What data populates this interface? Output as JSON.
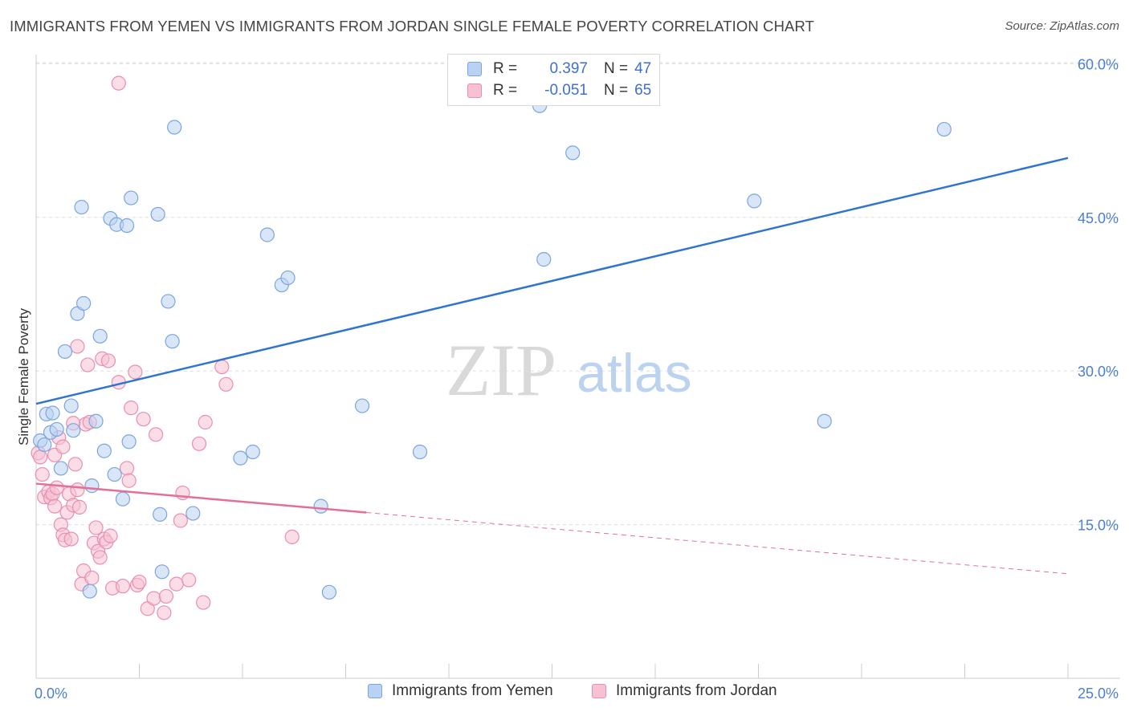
{
  "header": {
    "title": "IMMIGRANTS FROM YEMEN VS IMMIGRANTS FROM JORDAN SINGLE FEMALE POVERTY CORRELATION CHART",
    "source": "Source: ZipAtlas.com"
  },
  "legend": {
    "series1": {
      "r_label": "R =",
      "r_value": "0.397",
      "n_label": "N =",
      "n_value": "47"
    },
    "series2": {
      "r_label": "R =",
      "r_value": "-0.051",
      "n_label": "N =",
      "n_value": "65"
    }
  },
  "watermark": {
    "zip": "ZIP",
    "atlas": "atlas"
  },
  "colors": {
    "blue_fill": "#b9d1f3",
    "blue_stroke": "#7aa5e0",
    "blue_line": "#2f74cf",
    "pink_fill": "#f6c1d2",
    "pink_stroke": "#e98fae",
    "pink_line": "#e46f98",
    "tick_text": "#4a7fd1"
  },
  "chart_data": {
    "type": "scatter",
    "title": "IMMIGRANTS FROM YEMEN VS IMMIGRANTS FROM JORDAN SINGLE FEMALE POVERTY CORRELATION CHART",
    "ylabel": "Single Female Poverty",
    "xlabel": "",
    "xlim": [
      0,
      25
    ],
    "ylim": [
      0,
      60
    ],
    "x_tick_labels": [
      "0.0%",
      "25.0%"
    ],
    "y_ticks": [
      15,
      30,
      45,
      60
    ],
    "y_tick_labels": [
      "15.0%",
      "30.0%",
      "45.0%",
      "60.0%"
    ],
    "grid": "horizontal dashed",
    "series": [
      {
        "name": "Immigrants from Yemen",
        "color": "#b9d1f3",
        "R": 0.397,
        "N": 47,
        "trend": {
          "x": [
            0,
            25
          ],
          "y": [
            26.8,
            50.8
          ],
          "solid_until": 25
        },
        "points": [
          [
            0.1,
            23.2
          ],
          [
            0.2,
            22.8
          ],
          [
            0.25,
            25.8
          ],
          [
            0.4,
            25.9
          ],
          [
            0.35,
            24.0
          ],
          [
            0.5,
            24.3
          ],
          [
            0.6,
            20.5
          ],
          [
            0.7,
            31.9
          ],
          [
            0.85,
            26.6
          ],
          [
            0.9,
            24.2
          ],
          [
            1.0,
            35.6
          ],
          [
            1.1,
            46.0
          ],
          [
            1.15,
            36.6
          ],
          [
            1.35,
            18.8
          ],
          [
            1.45,
            25.1
          ],
          [
            1.55,
            33.4
          ],
          [
            1.65,
            22.2
          ],
          [
            1.8,
            44.9
          ],
          [
            1.9,
            19.9
          ],
          [
            1.95,
            44.3
          ],
          [
            2.1,
            17.5
          ],
          [
            2.2,
            44.2
          ],
          [
            2.25,
            23.1
          ],
          [
            2.3,
            46.9
          ],
          [
            2.95,
            45.3
          ],
          [
            3.0,
            16.0
          ],
          [
            3.05,
            10.4
          ],
          [
            3.2,
            36.8
          ],
          [
            3.3,
            32.9
          ],
          [
            3.35,
            53.8
          ],
          [
            3.8,
            16.1
          ],
          [
            4.95,
            21.5
          ],
          [
            5.25,
            22.1
          ],
          [
            5.6,
            43.3
          ],
          [
            5.95,
            38.4
          ],
          [
            6.1,
            39.1
          ],
          [
            6.9,
            16.8
          ],
          [
            7.1,
            8.4
          ],
          [
            7.9,
            26.6
          ],
          [
            9.3,
            22.1
          ],
          [
            12.2,
            55.9
          ],
          [
            12.3,
            40.9
          ],
          [
            13.0,
            51.3
          ],
          [
            17.4,
            46.6
          ],
          [
            19.1,
            25.1
          ],
          [
            22.0,
            53.6
          ],
          [
            1.3,
            8.5
          ]
        ]
      },
      {
        "name": "Immigrants from Jordan",
        "color": "#f6c1d2",
        "R": -0.051,
        "N": 65,
        "trend": {
          "x": [
            0,
            25
          ],
          "y": [
            19.0,
            10.2
          ],
          "solid_until": 8
        },
        "points": [
          [
            0.05,
            22.0
          ],
          [
            0.1,
            21.6
          ],
          [
            0.15,
            19.9
          ],
          [
            0.2,
            17.7
          ],
          [
            0.3,
            18.2
          ],
          [
            0.35,
            17.6
          ],
          [
            0.4,
            18.0
          ],
          [
            0.45,
            16.8
          ],
          [
            0.5,
            18.6
          ],
          [
            0.55,
            23.5
          ],
          [
            0.6,
            15.0
          ],
          [
            0.65,
            14.0
          ],
          [
            0.7,
            13.5
          ],
          [
            0.75,
            16.2
          ],
          [
            0.8,
            18.0
          ],
          [
            0.85,
            13.6
          ],
          [
            0.9,
            16.9
          ],
          [
            0.95,
            20.9
          ],
          [
            1.0,
            32.4
          ],
          [
            1.05,
            16.7
          ],
          [
            1.1,
            9.2
          ],
          [
            1.15,
            10.5
          ],
          [
            1.2,
            24.8
          ],
          [
            1.25,
            30.6
          ],
          [
            1.3,
            25.0
          ],
          [
            1.35,
            9.8
          ],
          [
            1.4,
            13.2
          ],
          [
            1.45,
            14.7
          ],
          [
            1.5,
            12.4
          ],
          [
            1.55,
            11.8
          ],
          [
            1.6,
            31.2
          ],
          [
            1.65,
            13.6
          ],
          [
            1.7,
            13.3
          ],
          [
            1.75,
            31.0
          ],
          [
            1.8,
            13.9
          ],
          [
            1.85,
            8.8
          ],
          [
            2.0,
            28.9
          ],
          [
            2.1,
            9.0
          ],
          [
            2.2,
            20.5
          ],
          [
            2.25,
            19.3
          ],
          [
            2.3,
            26.4
          ],
          [
            2.4,
            29.9
          ],
          [
            2.45,
            9.1
          ],
          [
            2.5,
            9.4
          ],
          [
            2.6,
            25.3
          ],
          [
            2.7,
            6.8
          ],
          [
            2.85,
            7.8
          ],
          [
            2.9,
            23.8
          ],
          [
            3.1,
            6.4
          ],
          [
            3.15,
            8.0
          ],
          [
            3.4,
            9.2
          ],
          [
            3.5,
            15.4
          ],
          [
            3.55,
            18.1
          ],
          [
            3.7,
            9.6
          ],
          [
            3.95,
            22.9
          ],
          [
            4.05,
            7.4
          ],
          [
            4.1,
            25.0
          ],
          [
            4.5,
            30.4
          ],
          [
            4.6,
            28.7
          ],
          [
            6.2,
            13.8
          ],
          [
            2.0,
            58.1
          ],
          [
            0.9,
            24.9
          ],
          [
            0.45,
            21.8
          ],
          [
            1.0,
            18.4
          ],
          [
            0.65,
            22.6
          ]
        ]
      }
    ]
  },
  "bottom_legend": {
    "series1_label": "Immigrants from Yemen",
    "series2_label": "Immigrants from Jordan"
  }
}
